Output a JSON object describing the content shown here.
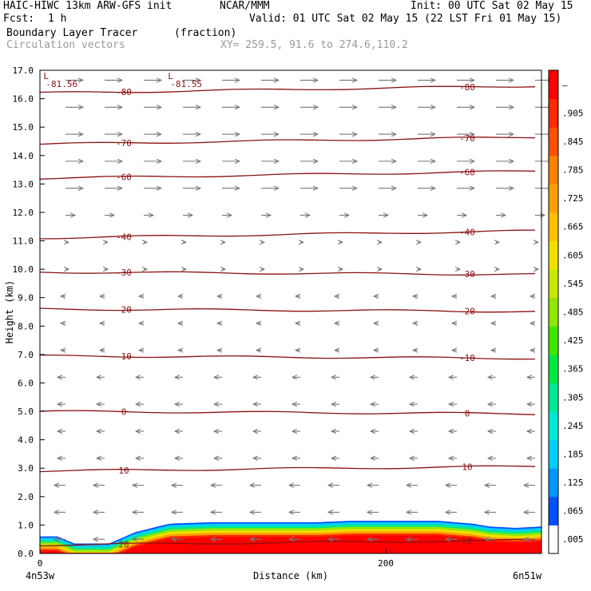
{
  "header": {
    "model": "HAIC-HIWC 13km ARW-GFS init",
    "org": "NCAR/MMM",
    "init": "Init: 00 UTC Sat 02 May 15",
    "fcst_label": "Fcst:",
    "fcst_value": "1 h",
    "valid": "Valid: 01 UTC Sat 02 May 15 (22 LST Fri 01 May 15)",
    "field": "Boundary Layer Tracer",
    "field_units": "(fraction)",
    "vectors": "Circulation vectors",
    "xy": "XY= 259.5, 91.6 to 274.6,110.2"
  },
  "chart_data": {
    "type": "heatmap",
    "xlabel": "Distance (km)",
    "ylabel": "Height (km)",
    "xlim": [
      0,
      290
    ],
    "ylim": [
      0,
      17
    ],
    "x_ticks": [
      0,
      200
    ],
    "y_ticks": [
      "0.0",
      "1.0",
      "2.0",
      "3.0",
      "4.0",
      "5.0",
      "6.0",
      "7.0",
      "8.0",
      "9.0",
      "10.0",
      "11.0",
      "12.0",
      "13.0",
      "14.0",
      "15.0",
      "16.0",
      "17.0"
    ],
    "x_endpoints": [
      "4n53w",
      "6n51w"
    ],
    "colorbar_labels": [
      ".005",
      ".065",
      ".125",
      ".185",
      ".245",
      ".305",
      ".365",
      ".425",
      ".485",
      ".545",
      ".605",
      ".665",
      ".725",
      ".785",
      ".845",
      ".905",
      "–"
    ],
    "colorbar_colors": [
      "#ffffff",
      "#0050ff",
      "#0096ff",
      "#00cfff",
      "#00e8d0",
      "#00e890",
      "#00e840",
      "#40e800",
      "#90e800",
      "#c8e800",
      "#f0e000",
      "#ffc000",
      "#ffa000",
      "#ff8000",
      "#ff5000",
      "#ff2800",
      "#ff0000"
    ],
    "temperature_contours": [
      {
        "label": "20",
        "height": 0.3
      },
      {
        "label": "10",
        "height": 2.9
      },
      {
        "label": "0",
        "height": 5.0
      },
      {
        "label": "-10",
        "height": 6.95
      },
      {
        "label": "-20",
        "height": 8.6
      },
      {
        "label": "-30",
        "height": 9.9
      },
      {
        "label": "-40",
        "height": 11.1
      },
      {
        "label": "-60",
        "height": 13.2
      },
      {
        "label": "-70",
        "height": 14.4
      },
      {
        "label": "-80",
        "height": 16.2
      }
    ],
    "minima": [
      {
        "mark": "L",
        "value": "-81.56",
        "x": 2
      },
      {
        "mark": "L",
        "value": "-81.55",
        "x": 74
      }
    ],
    "tracer_top_km": [
      0.55,
      0.55,
      0.3,
      0.3,
      0.7,
      1.0,
      1.05,
      1.05,
      1.05,
      1.1,
      1.1,
      1.1,
      1.1,
      1.05,
      1.0,
      0.9,
      0.85,
      0.9
    ],
    "tracer_top_x": [
      0,
      10,
      20,
      40,
      55,
      75,
      100,
      130,
      160,
      180,
      200,
      220,
      230,
      240,
      250,
      260,
      275,
      290
    ]
  }
}
